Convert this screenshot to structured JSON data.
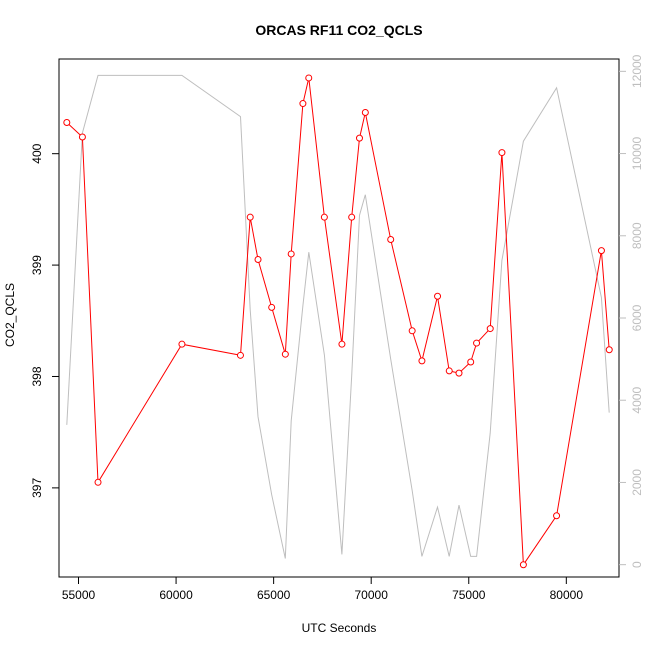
{
  "chart_data": {
    "type": "line",
    "title": "ORCAS RF11 CO2_QCLS",
    "xlabel": "UTC Seconds",
    "ylabel": "CO2_QCLS",
    "xlim": [
      54000,
      82700
    ],
    "ylim": [
      396.2,
      400.85
    ],
    "y2lim": [
      -300,
      12300
    ],
    "x_ticks": [
      55000,
      60000,
      65000,
      70000,
      75000,
      80000
    ],
    "y_ticks": [
      397,
      398,
      399,
      400
    ],
    "y2_ticks": [
      0,
      2000,
      4000,
      6000,
      8000,
      10000,
      12000
    ],
    "series": [
      {
        "axis": "left",
        "color": "#ff0000",
        "markers": "open-circle",
        "x": [
          54400,
          55200,
          56000,
          60300,
          63300,
          63800,
          64200,
          64900,
          65600,
          65900,
          66500,
          66800,
          67600,
          68500,
          69000,
          69400,
          69700,
          71000,
          72100,
          72600,
          73400,
          74000,
          74500,
          75100,
          75400,
          76100,
          76700,
          77800,
          79500,
          81800,
          82200
        ],
        "values": [
          400.28,
          400.15,
          397.05,
          398.29,
          398.19,
          399.43,
          399.05,
          398.62,
          398.2,
          399.1,
          400.45,
          400.68,
          399.43,
          398.29,
          399.43,
          400.14,
          400.37,
          399.23,
          398.41,
          398.14,
          398.72,
          398.05,
          398.03,
          398.13,
          398.3,
          398.43,
          400.01,
          396.31,
          396.75,
          399.13,
          398.24
        ]
      },
      {
        "axis": "right",
        "color": "#bebebe",
        "markers": "none",
        "x": [
          54400,
          55200,
          56000,
          60300,
          63300,
          63800,
          64200,
          64900,
          65600,
          65900,
          66500,
          66800,
          67600,
          68500,
          69000,
          69400,
          69700,
          71000,
          72100,
          72600,
          73400,
          74000,
          74500,
          75100,
          75400,
          76100,
          76700,
          77800,
          79500,
          81800,
          82200
        ],
        "values": [
          3400,
          10500,
          11900,
          11900,
          10900,
          6200,
          3600,
          1700,
          150,
          3500,
          6300,
          7600,
          5100,
          250,
          4600,
          8500,
          9000,
          5000,
          1800,
          200,
          1400,
          200,
          1450,
          200,
          200,
          3200,
          7400,
          10300,
          11600,
          6500,
          3700
        ]
      }
    ]
  }
}
